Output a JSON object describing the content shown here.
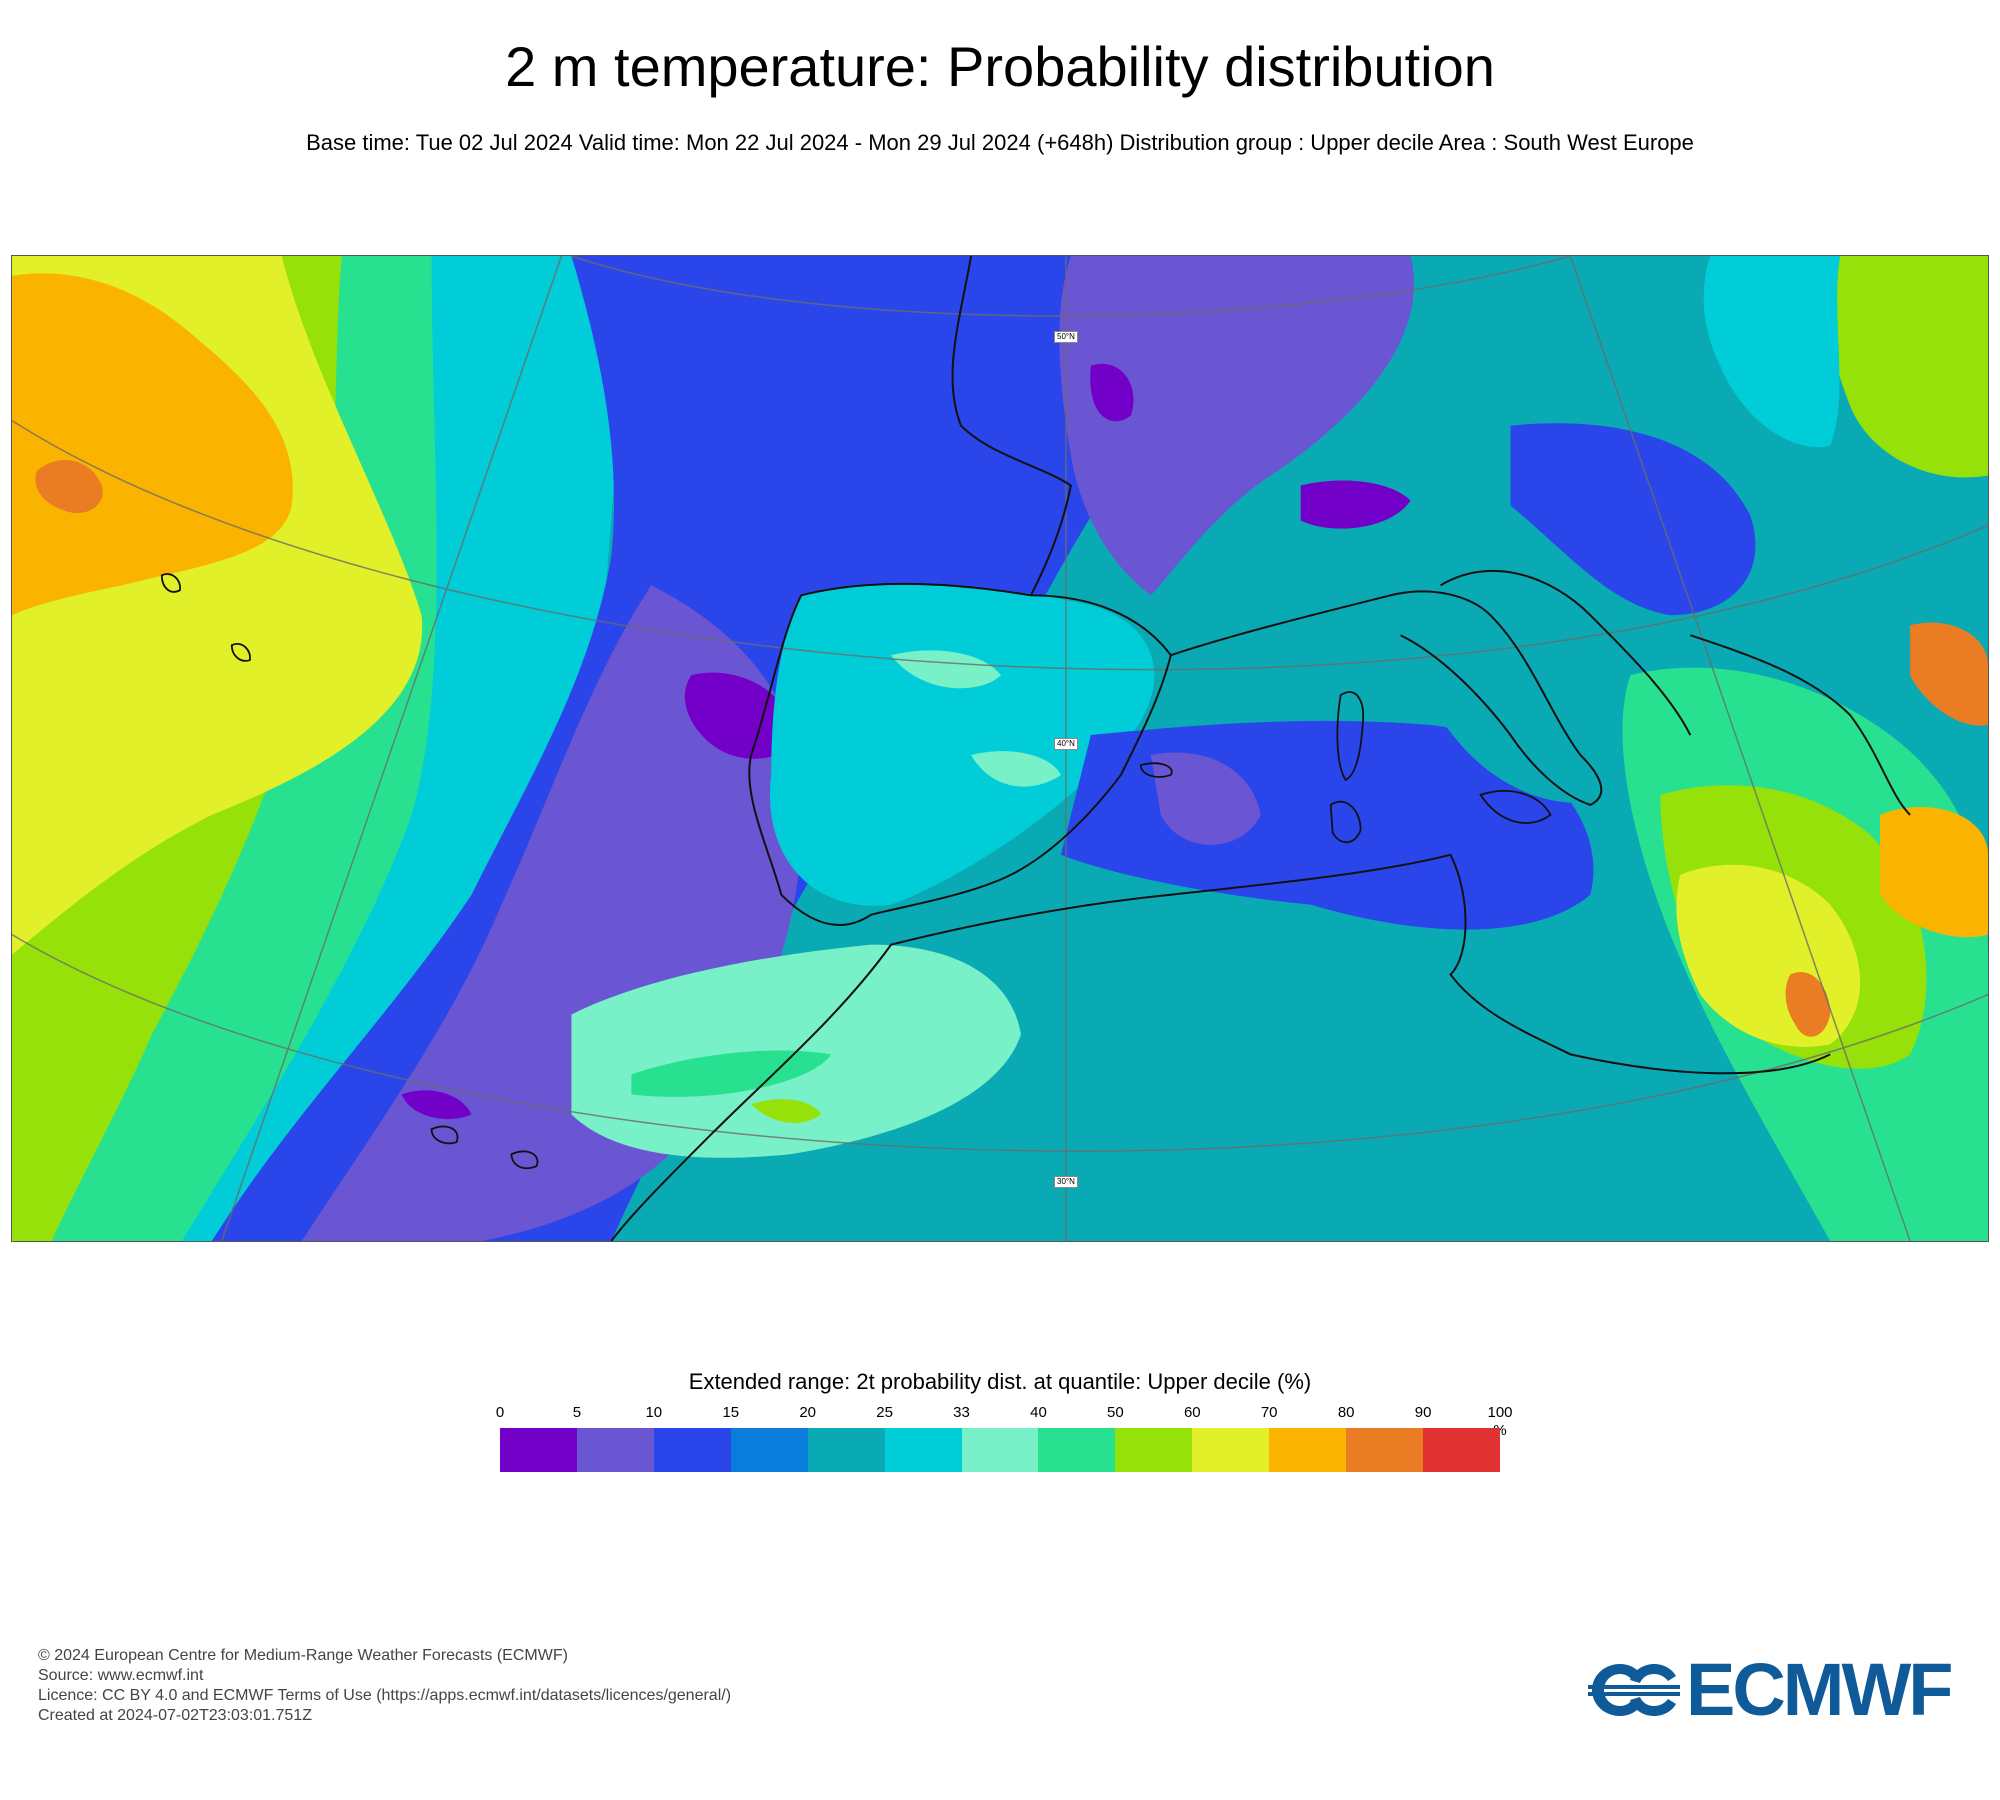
{
  "header": {
    "title": "2 m temperature: Probability distribution",
    "subtitle": "Base time: Tue 02 Jul 2024 Valid time: Mon 22 Jul 2024 - Mon 29 Jul 2024 (+648h) Distribution group : Upper decile Area : South West Europe"
  },
  "map": {
    "area": "South West Europe",
    "lat_labels": [
      "50°N",
      "40°N",
      "30°N"
    ]
  },
  "legend": {
    "title": "Extended range: 2t probability dist. at quantile: Upper decile (%)",
    "ticks": [
      "0",
      "5",
      "10",
      "15",
      "20",
      "25",
      "33",
      "40",
      "50",
      "60",
      "70",
      "80",
      "90",
      "100"
    ],
    "unit": "%",
    "colors": [
      "#7300c8",
      "#6a55d2",
      "#2a46eb",
      "#0a7ddc",
      "#0aaab4",
      "#00cdd7",
      "#78f0c8",
      "#28e190",
      "#96e10a",
      "#e1f028",
      "#fab400",
      "#ea7d23",
      "#e13232"
    ]
  },
  "footer": {
    "copyright": "© 2024 European Centre for Medium-Range Weather Forecasts (ECMWF)",
    "source": "Source: www.ecmwf.int",
    "licence": "Licence: CC BY 4.0 and ECMWF Terms of Use (https://apps.ecmwf.int/datasets/licences/general/)",
    "created": "Created at 2024-07-02T23:03:01.751Z"
  },
  "logo": {
    "text": "ECMWF",
    "color": "#0f5b99"
  }
}
